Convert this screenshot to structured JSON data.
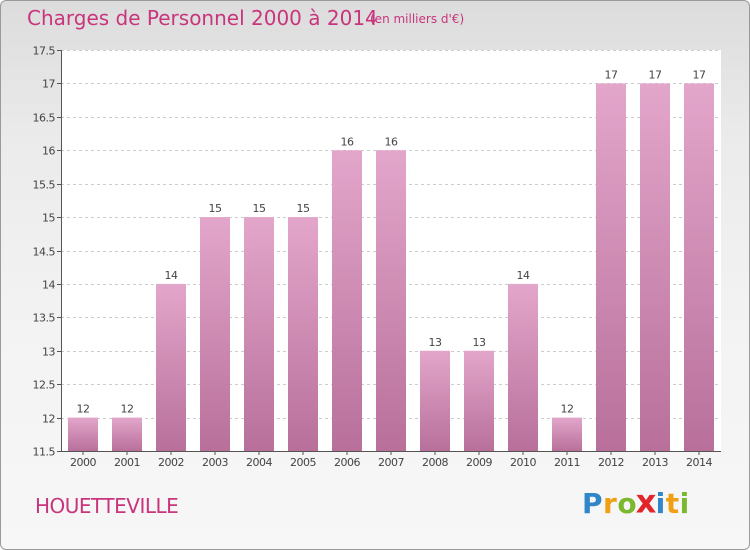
{
  "title": "Charges de Personnel 2000 à 2014",
  "subtitle": "(en milliers d'€)",
  "place": "HOUETTEVILLE",
  "logo": {
    "letters": [
      {
        "char": "P",
        "color": "#2f86c8"
      },
      {
        "char": "r",
        "color": "#f0a015"
      },
      {
        "char": "o",
        "color": "#7cb82f"
      },
      {
        "char": "x",
        "color": "#e2242b"
      },
      {
        "char": "i",
        "color": "#2f86c8"
      },
      {
        "char": "t",
        "color": "#f0a015"
      },
      {
        "char": "i",
        "color": "#7cb82f"
      }
    ]
  },
  "colors": {
    "text_accent": "#c8357c",
    "bar_top": "#e3a6cb",
    "bar_bottom": "#b8709a",
    "grid": "#cccccc"
  },
  "chart_data": {
    "type": "bar",
    "title": "Charges de Personnel 2000 à 2014",
    "subtitle": "(en milliers d'€)",
    "categories": [
      "2000",
      "2001",
      "2002",
      "2003",
      "2004",
      "2005",
      "2006",
      "2007",
      "2008",
      "2009",
      "2010",
      "2011",
      "2012",
      "2013",
      "2014"
    ],
    "values": [
      12,
      12,
      14,
      15,
      15,
      15,
      16,
      16,
      13,
      13,
      14,
      12,
      17,
      17,
      17
    ],
    "data_labels": [
      "12",
      "12",
      "14",
      "15",
      "15",
      "15",
      "16",
      "16",
      "13",
      "13",
      "14",
      "12",
      "17",
      "17",
      "17"
    ],
    "ylim": [
      11.5,
      17.5
    ],
    "yticks": [
      11.5,
      12,
      12.5,
      13,
      13.5,
      14,
      14.5,
      15,
      15.5,
      16,
      16.5,
      17,
      17.5
    ],
    "ytick_labels": [
      "11.5",
      "12",
      "12.5",
      "13",
      "13.5",
      "14",
      "14.5",
      "15",
      "15.5",
      "16",
      "16.5",
      "17",
      "17.5"
    ],
    "grid": true,
    "legend": "none"
  }
}
